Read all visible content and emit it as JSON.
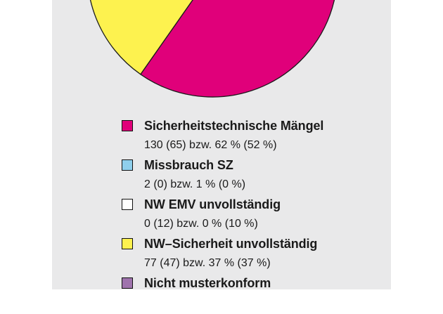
{
  "chart_data": {
    "type": "pie",
    "title": "",
    "legend_placement": "below",
    "slices": [
      {
        "name": "Sicherheitstechnische Mängel",
        "detail": "130 (65) bzw. 62 % (52 %)",
        "value": 62,
        "color": "#e0007a"
      },
      {
        "name": "Missbrauch SZ",
        "detail": "2 (0) bzw. 1 % (0 %)",
        "value": 1,
        "color": "#8fcfec"
      },
      {
        "name": "NW EMV unvollständig",
        "detail": "0 (12) bzw. 0 % (10 %)",
        "value": 0,
        "color": "#ffffff"
      },
      {
        "name": "NW–Sicherheit unvollständig",
        "detail": "77 (47) bzw. 37 % (37 %)",
        "value": 37,
        "color": "#fdf24f"
      },
      {
        "name": "Nicht musterkonform",
        "detail": "",
        "value": 0,
        "color": "#9f73ad"
      }
    ]
  }
}
